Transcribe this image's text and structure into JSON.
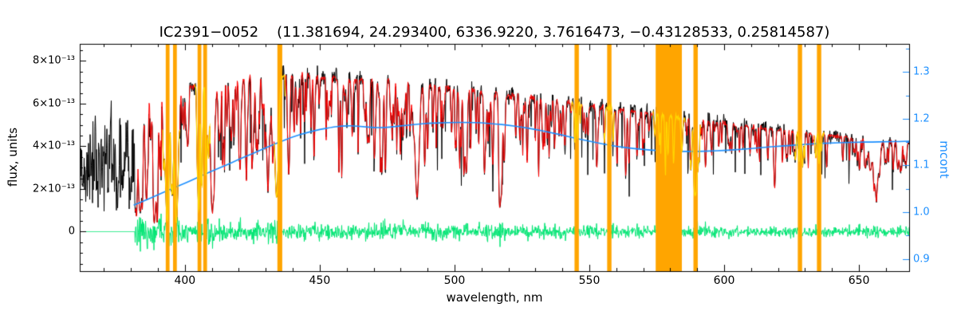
{
  "chart_data": {
    "type": "line",
    "title": "IC2391−0052    (11.381694, 24.293400, 6336.9220, 3.7616473, −0.43128533, 0.25814587)",
    "object_id": "IC2391−0052",
    "title_params": [
      11.381694,
      24.2934,
      6336.922,
      3.7616473,
      -0.43128533,
      0.25814587
    ],
    "xlabel": "wavelength, nm",
    "ylabel_left": "flux, units",
    "ylabel_right": "mcont",
    "xlim": [
      361,
      668.6
    ],
    "ylim_left_1e13": [
      -1.85,
      8.8
    ],
    "y_left_unit_scale": "1e-13",
    "ylim_right": [
      0.874,
      1.36
    ],
    "x_ticks": [
      400,
      450,
      500,
      550,
      600,
      650
    ],
    "x_minor_step": 10,
    "y_ticks_left": [
      {
        "v": 0,
        "label": "0"
      },
      {
        "v": 2,
        "label": "2×10⁻¹³"
      },
      {
        "v": 4,
        "label": "4×10⁻¹³"
      },
      {
        "v": 6,
        "label": "6×10⁻¹³"
      },
      {
        "v": 8,
        "label": "8×10⁻¹³"
      }
    ],
    "y_left_minor_step": 0.5,
    "y_ticks_right": [
      {
        "v": 0.9,
        "label": "0.9"
      },
      {
        "v": 1.0,
        "label": "1.0"
      },
      {
        "v": 1.1,
        "label": "1.1"
      },
      {
        "v": 1.2,
        "label": "1.2"
      },
      {
        "v": 1.3,
        "label": "1.3"
      }
    ],
    "y_right_minor_step": 0.05,
    "series_info": [
      {
        "name": "observed-spectrum",
        "color_key": "spectrum_black",
        "axis": "left"
      },
      {
        "name": "model-spectrum",
        "color_key": "model_red",
        "axis": "left"
      },
      {
        "name": "masked-model-spectrum",
        "color_key": "masked_model_yellow",
        "axis": "left"
      },
      {
        "name": "residuals",
        "color_key": "residual_green",
        "axis": "left",
        "zero_level": 0
      },
      {
        "name": "mcont-continuum",
        "color_key": "mcont_blue",
        "axis": "right"
      }
    ],
    "model_start_nm": 381.5,
    "continuum_envelope_1e13": [
      [
        361,
        2.9
      ],
      [
        366,
        3.1
      ],
      [
        371,
        3.5
      ],
      [
        375,
        3.9
      ],
      [
        378,
        4.6
      ],
      [
        381.5,
        6.1
      ],
      [
        385,
        6.35
      ],
      [
        390,
        6.55
      ],
      [
        395,
        6.6
      ],
      [
        400,
        6.75
      ],
      [
        405,
        6.9
      ],
      [
        410,
        7.0
      ],
      [
        415,
        7.1
      ],
      [
        420,
        7.2
      ],
      [
        425,
        7.25
      ],
      [
        430,
        7.25
      ],
      [
        435,
        7.3
      ],
      [
        440,
        7.35
      ],
      [
        445,
        7.3
      ],
      [
        450,
        7.25
      ],
      [
        455,
        7.2
      ],
      [
        460,
        7.15
      ],
      [
        465,
        7.12
      ],
      [
        470,
        7.1
      ],
      [
        475,
        7.05
      ],
      [
        480,
        7.0
      ],
      [
        485,
        6.95
      ],
      [
        490,
        6.9
      ],
      [
        495,
        6.8
      ],
      [
        500,
        6.7
      ],
      [
        505,
        6.62
      ],
      [
        510,
        6.55
      ],
      [
        515,
        6.48
      ],
      [
        520,
        6.4
      ],
      [
        525,
        6.32
      ],
      [
        530,
        6.25
      ],
      [
        535,
        6.18
      ],
      [
        540,
        6.1
      ],
      [
        545,
        6.0
      ],
      [
        550,
        5.92
      ],
      [
        555,
        5.83
      ],
      [
        560,
        5.75
      ],
      [
        565,
        5.67
      ],
      [
        570,
        5.58
      ],
      [
        575,
        5.5
      ],
      [
        580,
        5.42
      ],
      [
        585,
        5.33
      ],
      [
        590,
        5.25
      ],
      [
        595,
        5.17
      ],
      [
        600,
        5.08
      ],
      [
        605,
        5.0
      ],
      [
        610,
        4.92
      ],
      [
        615,
        4.85
      ],
      [
        620,
        4.77
      ],
      [
        625,
        4.7
      ],
      [
        630,
        4.62
      ],
      [
        635,
        4.55
      ],
      [
        640,
        4.48
      ],
      [
        645,
        4.42
      ],
      [
        650,
        4.36
      ],
      [
        655,
        4.3
      ],
      [
        660,
        4.25
      ],
      [
        665,
        4.2
      ],
      [
        668.6,
        4.17
      ]
    ],
    "mcont_curve": [
      [
        381,
        1.015
      ],
      [
        385,
        1.025
      ],
      [
        390,
        1.037
      ],
      [
        395,
        1.05
      ],
      [
        400,
        1.062
      ],
      [
        405,
        1.075
      ],
      [
        410,
        1.088
      ],
      [
        415,
        1.1
      ],
      [
        420,
        1.113
      ],
      [
        425,
        1.125
      ],
      [
        430,
        1.138
      ],
      [
        435,
        1.15
      ],
      [
        440,
        1.161
      ],
      [
        445,
        1.17
      ],
      [
        450,
        1.177
      ],
      [
        455,
        1.182
      ],
      [
        458,
        1.184
      ],
      [
        462,
        1.185
      ],
      [
        466,
        1.183
      ],
      [
        470,
        1.181
      ],
      [
        474,
        1.181
      ],
      [
        478,
        1.183
      ],
      [
        482,
        1.186
      ],
      [
        486,
        1.188
      ],
      [
        490,
        1.19
      ],
      [
        495,
        1.191
      ],
      [
        500,
        1.192
      ],
      [
        505,
        1.192
      ],
      [
        510,
        1.191
      ],
      [
        515,
        1.189
      ],
      [
        520,
        1.186
      ],
      [
        525,
        1.182
      ],
      [
        530,
        1.177
      ],
      [
        535,
        1.171
      ],
      [
        540,
        1.165
      ],
      [
        545,
        1.158
      ],
      [
        550,
        1.152
      ],
      [
        555,
        1.146
      ],
      [
        560,
        1.141
      ],
      [
        565,
        1.137
      ],
      [
        570,
        1.134
      ],
      [
        575,
        1.132
      ],
      [
        580,
        1.131
      ],
      [
        585,
        1.13
      ],
      [
        590,
        1.13
      ],
      [
        595,
        1.131
      ],
      [
        600,
        1.132
      ],
      [
        605,
        1.134
      ],
      [
        610,
        1.136
      ],
      [
        615,
        1.139
      ],
      [
        620,
        1.141
      ],
      [
        625,
        1.143
      ],
      [
        630,
        1.145
      ],
      [
        635,
        1.147
      ],
      [
        640,
        1.148
      ],
      [
        645,
        1.149
      ],
      [
        650,
        1.15
      ],
      [
        655,
        1.15
      ],
      [
        660,
        1.151
      ],
      [
        665,
        1.151
      ],
      [
        668.6,
        1.152
      ]
    ],
    "line_format": "[center_nm, depth_fraction, sigma_nm]",
    "absorption_lines_cdw": [
      [
        375.0,
        0.6,
        0.6
      ],
      [
        377.1,
        0.6,
        0.6
      ],
      [
        379.8,
        0.65,
        0.7
      ],
      [
        383.5,
        0.8,
        0.8
      ],
      [
        385.9,
        0.45,
        0.4
      ],
      [
        388.9,
        0.82,
        0.9
      ],
      [
        393.4,
        0.9,
        1.0
      ],
      [
        396.8,
        0.88,
        1.0
      ],
      [
        400.9,
        0.3,
        0.3
      ],
      [
        404.6,
        0.45,
        0.35
      ],
      [
        406.4,
        0.35,
        0.3
      ],
      [
        410.2,
        0.8,
        1.0
      ],
      [
        413.2,
        0.3,
        0.3
      ],
      [
        414.4,
        0.4,
        0.35
      ],
      [
        417.2,
        0.3,
        0.3
      ],
      [
        420.2,
        0.32,
        0.3
      ],
      [
        422.7,
        0.6,
        0.45
      ],
      [
        425.0,
        0.35,
        0.35
      ],
      [
        427.2,
        0.42,
        0.35
      ],
      [
        430.8,
        0.5,
        1.3
      ],
      [
        432.6,
        0.4,
        0.4
      ],
      [
        434.0,
        0.78,
        1.0
      ],
      [
        438.3,
        0.48,
        0.45
      ],
      [
        440.5,
        0.38,
        0.35
      ],
      [
        441.5,
        0.32,
        0.3
      ],
      [
        444.3,
        0.3,
        0.3
      ],
      [
        448.1,
        0.33,
        0.35
      ],
      [
        453.1,
        0.28,
        0.35
      ],
      [
        457.1,
        0.25,
        0.3
      ],
      [
        462.0,
        0.28,
        0.35
      ],
      [
        466.8,
        0.28,
        0.35
      ],
      [
        470.3,
        0.26,
        0.3
      ],
      [
        476.3,
        0.25,
        0.3
      ],
      [
        481.0,
        0.25,
        0.3
      ],
      [
        486.1,
        0.77,
        1.1
      ],
      [
        489.1,
        0.35,
        0.3
      ],
      [
        492.0,
        0.3,
        0.3
      ],
      [
        495.7,
        0.28,
        0.3
      ],
      [
        501.8,
        0.3,
        0.3
      ],
      [
        504.2,
        0.25,
        0.3
      ],
      [
        508.0,
        0.28,
        0.3
      ],
      [
        511.0,
        0.26,
        0.3
      ],
      [
        513.0,
        0.25,
        0.3
      ],
      [
        516.7,
        0.52,
        0.5
      ],
      [
        517.3,
        0.48,
        0.45
      ],
      [
        518.4,
        0.5,
        0.45
      ],
      [
        522.7,
        0.3,
        0.3
      ],
      [
        526.9,
        0.45,
        0.4
      ],
      [
        532.8,
        0.38,
        0.4
      ],
      [
        537.1,
        0.36,
        0.35
      ],
      [
        539.7,
        0.28,
        0.3
      ],
      [
        544.6,
        0.32,
        0.3
      ],
      [
        549.5,
        0.25,
        0.3
      ],
      [
        552.8,
        0.34,
        0.35
      ],
      [
        558.8,
        0.28,
        0.3
      ],
      [
        563.5,
        0.26,
        0.3
      ],
      [
        570.0,
        0.24,
        0.3
      ],
      [
        576.0,
        0.25,
        0.3
      ],
      [
        581.2,
        0.28,
        0.3
      ],
      [
        587.7,
        0.4,
        0.35
      ],
      [
        589.0,
        0.62,
        0.5
      ],
      [
        589.6,
        0.58,
        0.5
      ],
      [
        593.0,
        0.22,
        0.3
      ],
      [
        598.0,
        0.22,
        0.3
      ],
      [
        602.1,
        0.24,
        0.3
      ],
      [
        607.0,
        0.22,
        0.3
      ],
      [
        612.2,
        0.26,
        0.3
      ],
      [
        616.2,
        0.3,
        0.35
      ],
      [
        623.0,
        0.24,
        0.3
      ],
      [
        627.8,
        0.26,
        0.3
      ],
      [
        634.0,
        0.24,
        0.3
      ],
      [
        638.0,
        0.22,
        0.3
      ],
      [
        644.0,
        0.26,
        0.3
      ],
      [
        649.4,
        0.24,
        0.3
      ],
      [
        653.0,
        0.22,
        0.3
      ],
      [
        656.3,
        0.55,
        1.4
      ],
      [
        662.8,
        0.24,
        0.3
      ],
      [
        667.0,
        0.2,
        0.3
      ]
    ],
    "weak_lines": {
      "seed": 20240612,
      "count": 300,
      "range": [
        381.5,
        668.6
      ]
    },
    "masked_bands_nm": [
      [
        392.9,
        394.3
      ],
      [
        395.6,
        397.0
      ],
      [
        404.7,
        406.1
      ],
      [
        406.8,
        408.2
      ],
      [
        434.3,
        436.1
      ],
      [
        544.5,
        546.1
      ],
      [
        556.6,
        558.2
      ],
      [
        574.6,
        584.3
      ],
      [
        588.6,
        590.2
      ],
      [
        627.3,
        628.9
      ],
      [
        634.4,
        636.0
      ]
    ],
    "masked_model_pad_nm": 1.2,
    "residuals": {
      "baseline_amp_1e13": 0.16,
      "line_amp_1e13": 0.32,
      "start_nm": 381.5,
      "red_taper": 0.45
    },
    "noise": {
      "black_only_rel": 0.3,
      "black_rel": 0.035,
      "red_rel": 0.012,
      "deep_spike_prob": 0.045,
      "blue_spike_prob": 0.06
    }
  },
  "colors": {
    "background": "#ffffff",
    "frame": "#000000",
    "spectrum_black": "#000000",
    "model_red": "#ff0000",
    "masked_model_yellow": "#ffd700",
    "residual_green": "#00e673",
    "mcont_blue": "#1e90ff",
    "masked_band_orange": "#ffa500"
  }
}
